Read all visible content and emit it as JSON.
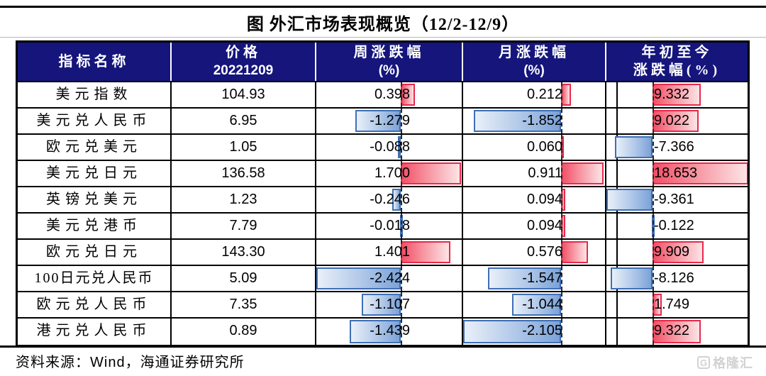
{
  "title": "图  外汇市场表现概览（12/2-12/9）",
  "source": {
    "prefix": "资料来源：",
    "vendor": "Wind",
    "suffix": "，海通证券研究所"
  },
  "watermark": {
    "icon": "G",
    "text": "格隆汇"
  },
  "colors": {
    "header_bg": "#15157C",
    "positive_bar_border": "#E8294A",
    "positive_bar_fill": "#F25067",
    "negative_bar_border": "#3F6FB5",
    "negative_bar_fill": "#7BA2D8",
    "border": "#000000"
  },
  "header": {
    "cols": [
      {
        "line1": "指标名称",
        "line2": ""
      },
      {
        "line1": "价格",
        "line2": "20221209"
      },
      {
        "line1": "周涨跌幅",
        "line2": "(%)"
      },
      {
        "line1": "月涨跌幅",
        "line2": "(%)"
      },
      {
        "line1": "年初至今",
        "line2": "涨跌幅(%)"
      }
    ]
  },
  "chart_data": {
    "type": "table",
    "title": "图 外汇市场表现概览（12/2-12/9）",
    "columns": [
      "指标名称",
      "价格 20221209",
      "周涨跌幅(%)",
      "月涨跌幅(%)",
      "年初至今涨跌幅(%)"
    ],
    "rows": [
      {
        "label": "美元指数",
        "price": 104.93,
        "week": 0.398,
        "month": 0.212,
        "ytd": 9.332
      },
      {
        "label": "美元兑人民币",
        "price": 6.95,
        "week": -1.279,
        "month": -1.852,
        "ytd": 9.022
      },
      {
        "label": "欧元兑美元",
        "price": 1.05,
        "week": -0.088,
        "month": 0.06,
        "ytd": -7.366
      },
      {
        "label": "美元兑日元",
        "price": 136.58,
        "week": 1.7,
        "month": 0.911,
        "ytd": 18.653
      },
      {
        "label": "英镑兑美元",
        "price": 1.23,
        "week": -0.246,
        "month": 0.094,
        "ytd": -9.361
      },
      {
        "label": "美元兑港币",
        "price": 7.79,
        "week": -0.018,
        "month": 0.094,
        "ytd": -0.122
      },
      {
        "label": "欧元兑日元",
        "price": 143.3,
        "week": 1.401,
        "month": 0.576,
        "ytd": 9.909
      },
      {
        "label": "100日元兑人民币",
        "price": 5.09,
        "week": -2.424,
        "month": -1.547,
        "ytd": -8.126
      },
      {
        "label": "欧元兑人民币",
        "price": 7.35,
        "week": -1.107,
        "month": -1.044,
        "ytd": 1.749
      },
      {
        "label": "港元兑人民币",
        "price": 0.89,
        "week": -1.439,
        "month": -2.105,
        "ytd": 9.322
      }
    ],
    "bar_scales": {
      "week": {
        "min": -2.424,
        "max": 1.7
      },
      "month": {
        "min": -2.105,
        "max": 0.911
      },
      "ytd": {
        "min": -9.361,
        "max": 18.653
      }
    },
    "formats": {
      "price_decimals": 2,
      "change_decimals": 3
    },
    "bar_style": "excel-gradient-databar, dashed zero axis, negative blue left, positive red right"
  }
}
